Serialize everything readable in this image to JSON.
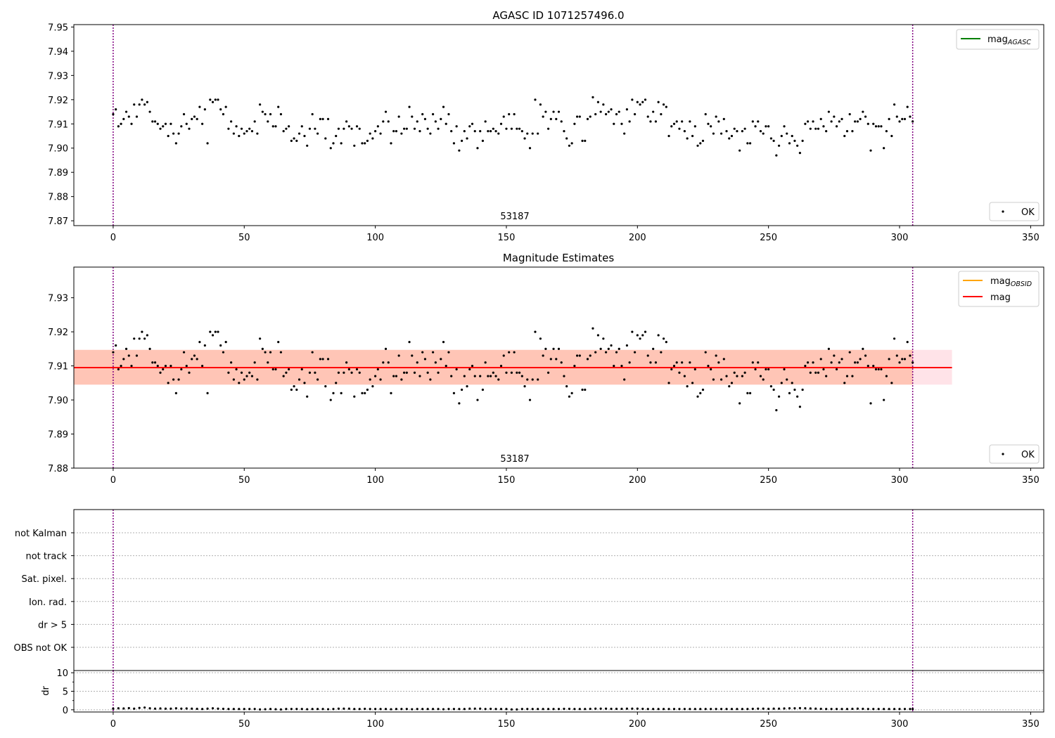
{
  "colors": {
    "mag_agasc": "#008000",
    "mag_obsid": "#ffa500",
    "mag": "#ff0000",
    "vline": "#800080",
    "points": "#000000",
    "band_outer": "#ffc0cb",
    "band_inner": "#ffa07a"
  },
  "chart_data": [
    {
      "type": "scatter",
      "title": "AGASC ID 1071257496.0",
      "xlabel": "",
      "ylabel": "",
      "xlim": [
        -15,
        355
      ],
      "ylim": [
        7.868,
        7.951
      ],
      "xticks": [
        0,
        50,
        100,
        150,
        200,
        250,
        300,
        350
      ],
      "yticks": [
        7.87,
        7.88,
        7.89,
        7.9,
        7.91,
        7.92,
        7.93,
        7.94,
        7.95
      ],
      "annotation": "53187",
      "vlines": [
        0,
        305
      ],
      "legend_lines": [
        {
          "label": "mag",
          "sub": "AGASC",
          "color": "#008000"
        }
      ],
      "legend_lines_position": "upper-right",
      "legend_points": [
        {
          "label": "OK"
        }
      ],
      "legend_points_position": "lower-right",
      "grid": false,
      "series": [
        {
          "name": "OK",
          "source": "mag_points"
        }
      ]
    },
    {
      "type": "scatter",
      "title": "Magnitude Estimates",
      "xlabel": "",
      "ylabel": "",
      "xlim": [
        -15,
        355
      ],
      "ylim": [
        7.88,
        7.939
      ],
      "xticks": [
        0,
        50,
        100,
        150,
        200,
        250,
        300,
        350
      ],
      "yticks": [
        7.88,
        7.89,
        7.9,
        7.91,
        7.92,
        7.93
      ],
      "annotation": "53187",
      "vlines": [
        0,
        305
      ],
      "mag_value": 7.9095,
      "mag_line_x": [
        -15,
        320
      ],
      "band_outer": {
        "x": [
          -15,
          320
        ],
        "y": [
          7.9045,
          7.9147
        ]
      },
      "band_inner": {
        "x": [
          -15,
          305
        ],
        "y": [
          7.9045,
          7.9147
        ]
      },
      "legend_lines": [
        {
          "label": "mag",
          "sub": "OBSID",
          "color": "#ffa500"
        },
        {
          "label": "mag",
          "sub": "",
          "color": "#ff0000"
        }
      ],
      "legend_lines_position": "upper-right",
      "legend_points": [
        {
          "label": "OK"
        }
      ],
      "legend_points_position": "lower-right",
      "grid": false,
      "series": [
        {
          "name": "OK",
          "source": "mag_points"
        }
      ]
    },
    {
      "type": "scatter",
      "title": "",
      "xlim": [
        -15,
        355
      ],
      "category_labels": [
        "not Kalman",
        "not track",
        "Sat. pixel.",
        "Ion. rad.",
        "dr > 5",
        "OBS not OK"
      ],
      "vlines": [
        0,
        305
      ],
      "grid": true
    },
    {
      "type": "scatter",
      "title": "",
      "xlabel": "",
      "ylabel": "dr",
      "xlim": [
        -15,
        355
      ],
      "ylim": [
        -0.6,
        10.6
      ],
      "xticks": [
        0,
        50,
        100,
        150,
        200,
        250,
        300,
        350
      ],
      "yticks": [
        0,
        5,
        10
      ],
      "vlines": [
        0,
        305
      ],
      "grid": true,
      "series": [
        {
          "name": "dr",
          "source": "dr_points"
        }
      ]
    }
  ],
  "mag_points": [
    [
      0,
      7.914
    ],
    [
      1,
      7.916
    ],
    [
      2,
      7.909
    ],
    [
      3,
      7.91
    ],
    [
      4,
      7.912
    ],
    [
      5,
      7.915
    ],
    [
      6,
      7.913
    ],
    [
      7,
      7.91
    ],
    [
      8,
      7.918
    ],
    [
      9,
      7.913
    ],
    [
      10,
      7.918
    ],
    [
      11,
      7.92
    ],
    [
      12,
      7.918
    ],
    [
      13,
      7.919
    ],
    [
      14,
      7.915
    ],
    [
      15,
      7.911
    ],
    [
      16,
      7.911
    ],
    [
      17,
      7.91
    ],
    [
      18,
      7.908
    ],
    [
      19,
      7.909
    ],
    [
      20,
      7.91
    ],
    [
      21,
      7.905
    ],
    [
      22,
      7.91
    ],
    [
      23,
      7.906
    ],
    [
      24,
      7.902
    ],
    [
      25,
      7.906
    ],
    [
      26,
      7.909
    ],
    [
      27,
      7.914
    ],
    [
      28,
      7.91
    ],
    [
      29,
      7.908
    ],
    [
      30,
      7.912
    ],
    [
      31,
      7.913
    ],
    [
      32,
      7.912
    ],
    [
      33,
      7.917
    ],
    [
      34,
      7.91
    ],
    [
      35,
      7.916
    ],
    [
      36,
      7.902
    ],
    [
      37,
      7.92
    ],
    [
      38,
      7.919
    ],
    [
      39,
      7.92
    ],
    [
      40,
      7.92
    ],
    [
      41,
      7.916
    ],
    [
      42,
      7.914
    ],
    [
      43,
      7.917
    ],
    [
      44,
      7.908
    ],
    [
      45,
      7.911
    ],
    [
      46,
      7.906
    ],
    [
      47,
      7.909
    ],
    [
      48,
      7.905
    ],
    [
      49,
      7.908
    ],
    [
      50,
      7.906
    ],
    [
      51,
      7.907
    ],
    [
      52,
      7.908
    ],
    [
      53,
      7.907
    ],
    [
      54,
      7.911
    ],
    [
      55,
      7.906
    ],
    [
      56,
      7.918
    ],
    [
      57,
      7.915
    ],
    [
      58,
      7.914
    ],
    [
      59,
      7.911
    ],
    [
      60,
      7.914
    ],
    [
      61,
      7.909
    ],
    [
      62,
      7.909
    ],
    [
      63,
      7.917
    ],
    [
      64,
      7.914
    ],
    [
      65,
      7.907
    ],
    [
      66,
      7.908
    ],
    [
      67,
      7.909
    ],
    [
      68,
      7.903
    ],
    [
      69,
      7.904
    ],
    [
      70,
      7.903
    ],
    [
      71,
      7.906
    ],
    [
      72,
      7.909
    ],
    [
      73,
      7.905
    ],
    [
      74,
      7.901
    ],
    [
      75,
      7.908
    ],
    [
      76,
      7.914
    ],
    [
      77,
      7.908
    ],
    [
      78,
      7.906
    ],
    [
      79,
      7.912
    ],
    [
      80,
      7.912
    ],
    [
      81,
      7.904
    ],
    [
      82,
      7.912
    ],
    [
      83,
      7.9
    ],
    [
      84,
      7.902
    ],
    [
      85,
      7.905
    ],
    [
      86,
      7.908
    ],
    [
      87,
      7.902
    ],
    [
      88,
      7.908
    ],
    [
      89,
      7.911
    ],
    [
      90,
      7.909
    ],
    [
      91,
      7.908
    ],
    [
      92,
      7.901
    ],
    [
      93,
      7.909
    ],
    [
      94,
      7.908
    ],
    [
      95,
      7.902
    ],
    [
      96,
      7.902
    ],
    [
      97,
      7.903
    ],
    [
      98,
      7.906
    ],
    [
      99,
      7.904
    ],
    [
      100,
      7.907
    ],
    [
      101,
      7.909
    ],
    [
      102,
      7.906
    ],
    [
      103,
      7.911
    ],
    [
      104,
      7.915
    ],
    [
      105,
      7.911
    ],
    [
      106,
      7.902
    ],
    [
      107,
      7.907
    ],
    [
      108,
      7.907
    ],
    [
      109,
      7.913
    ],
    [
      110,
      7.906
    ],
    [
      111,
      7.908
    ],
    [
      112,
      7.908
    ],
    [
      113,
      7.917
    ],
    [
      114,
      7.913
    ],
    [
      115,
      7.908
    ],
    [
      116,
      7.911
    ],
    [
      117,
      7.907
    ],
    [
      118,
      7.914
    ],
    [
      119,
      7.912
    ],
    [
      120,
      7.908
    ],
    [
      121,
      7.906
    ],
    [
      122,
      7.914
    ],
    [
      123,
      7.911
    ],
    [
      124,
      7.908
    ],
    [
      125,
      7.912
    ],
    [
      126,
      7.917
    ],
    [
      127,
      7.91
    ],
    [
      128,
      7.914
    ],
    [
      129,
      7.907
    ],
    [
      130,
      7.902
    ],
    [
      131,
      7.909
    ],
    [
      132,
      7.899
    ],
    [
      133,
      7.903
    ],
    [
      134,
      7.907
    ],
    [
      135,
      7.904
    ],
    [
      136,
      7.909
    ],
    [
      137,
      7.91
    ],
    [
      138,
      7.907
    ],
    [
      139,
      7.9
    ],
    [
      140,
      7.907
    ],
    [
      141,
      7.903
    ],
    [
      142,
      7.911
    ],
    [
      143,
      7.907
    ],
    [
      144,
      7.907
    ],
    [
      145,
      7.908
    ],
    [
      146,
      7.907
    ],
    [
      147,
      7.906
    ],
    [
      148,
      7.91
    ],
    [
      149,
      7.913
    ],
    [
      150,
      7.908
    ],
    [
      151,
      7.914
    ],
    [
      152,
      7.908
    ],
    [
      153,
      7.914
    ],
    [
      154,
      7.908
    ],
    [
      155,
      7.908
    ],
    [
      156,
      7.907
    ],
    [
      157,
      7.904
    ],
    [
      158,
      7.906
    ],
    [
      159,
      7.9
    ],
    [
      160,
      7.906
    ],
    [
      161,
      7.92
    ],
    [
      162,
      7.906
    ],
    [
      163,
      7.918
    ],
    [
      164,
      7.913
    ],
    [
      165,
      7.915
    ],
    [
      166,
      7.908
    ],
    [
      167,
      7.912
    ],
    [
      168,
      7.915
    ],
    [
      169,
      7.912
    ],
    [
      170,
      7.915
    ],
    [
      171,
      7.911
    ],
    [
      172,
      7.907
    ],
    [
      173,
      7.904
    ],
    [
      174,
      7.901
    ],
    [
      175,
      7.902
    ],
    [
      176,
      7.91
    ],
    [
      177,
      7.913
    ],
    [
      178,
      7.913
    ],
    [
      179,
      7.903
    ],
    [
      180,
      7.903
    ],
    [
      181,
      7.912
    ],
    [
      182,
      7.913
    ],
    [
      183,
      7.921
    ],
    [
      184,
      7.914
    ],
    [
      185,
      7.919
    ],
    [
      186,
      7.915
    ],
    [
      187,
      7.918
    ],
    [
      188,
      7.914
    ],
    [
      189,
      7.915
    ],
    [
      190,
      7.916
    ],
    [
      191,
      7.91
    ],
    [
      192,
      7.914
    ],
    [
      193,
      7.915
    ],
    [
      194,
      7.91
    ],
    [
      195,
      7.906
    ],
    [
      196,
      7.916
    ],
    [
      197,
      7.911
    ],
    [
      198,
      7.92
    ],
    [
      199,
      7.914
    ],
    [
      200,
      7.919
    ],
    [
      201,
      7.918
    ],
    [
      202,
      7.919
    ],
    [
      203,
      7.92
    ],
    [
      204,
      7.913
    ],
    [
      205,
      7.911
    ],
    [
      206,
      7.915
    ],
    [
      207,
      7.911
    ],
    [
      208,
      7.919
    ],
    [
      209,
      7.914
    ],
    [
      210,
      7.918
    ],
    [
      211,
      7.917
    ],
    [
      212,
      7.905
    ],
    [
      213,
      7.909
    ],
    [
      214,
      7.91
    ],
    [
      215,
      7.911
    ],
    [
      216,
      7.908
    ],
    [
      217,
      7.911
    ],
    [
      218,
      7.907
    ],
    [
      219,
      7.904
    ],
    [
      220,
      7.911
    ],
    [
      221,
      7.905
    ],
    [
      222,
      7.909
    ],
    [
      223,
      7.901
    ],
    [
      224,
      7.902
    ],
    [
      225,
      7.903
    ],
    [
      226,
      7.914
    ],
    [
      227,
      7.91
    ],
    [
      228,
      7.909
    ],
    [
      229,
      7.906
    ],
    [
      230,
      7.913
    ],
    [
      231,
      7.911
    ],
    [
      232,
      7.906
    ],
    [
      233,
      7.912
    ],
    [
      234,
      7.907
    ],
    [
      235,
      7.904
    ],
    [
      236,
      7.905
    ],
    [
      237,
      7.908
    ],
    [
      238,
      7.907
    ],
    [
      239,
      7.899
    ],
    [
      240,
      7.907
    ],
    [
      241,
      7.908
    ],
    [
      242,
      7.902
    ],
    [
      243,
      7.902
    ],
    [
      244,
      7.911
    ],
    [
      245,
      7.909
    ],
    [
      246,
      7.911
    ],
    [
      247,
      7.907
    ],
    [
      248,
      7.906
    ],
    [
      249,
      7.909
    ],
    [
      250,
      7.909
    ],
    [
      251,
      7.904
    ],
    [
      252,
      7.903
    ],
    [
      253,
      7.897
    ],
    [
      254,
      7.901
    ],
    [
      255,
      7.905
    ],
    [
      256,
      7.909
    ],
    [
      257,
      7.906
    ],
    [
      258,
      7.902
    ],
    [
      259,
      7.905
    ],
    [
      260,
      7.903
    ],
    [
      261,
      7.901
    ],
    [
      262,
      7.898
    ],
    [
      263,
      7.903
    ],
    [
      264,
      7.91
    ],
    [
      265,
      7.911
    ],
    [
      266,
      7.908
    ],
    [
      267,
      7.911
    ],
    [
      268,
      7.908
    ],
    [
      269,
      7.908
    ],
    [
      270,
      7.912
    ],
    [
      271,
      7.909
    ],
    [
      272,
      7.907
    ],
    [
      273,
      7.915
    ],
    [
      274,
      7.911
    ],
    [
      275,
      7.913
    ],
    [
      276,
      7.909
    ],
    [
      277,
      7.911
    ],
    [
      278,
      7.912
    ],
    [
      279,
      7.905
    ],
    [
      280,
      7.907
    ],
    [
      281,
      7.914
    ],
    [
      282,
      7.907
    ],
    [
      283,
      7.911
    ],
    [
      284,
      7.911
    ],
    [
      285,
      7.912
    ],
    [
      286,
      7.915
    ],
    [
      287,
      7.913
    ],
    [
      288,
      7.91
    ],
    [
      289,
      7.899
    ],
    [
      290,
      7.91
    ],
    [
      291,
      7.909
    ],
    [
      292,
      7.909
    ],
    [
      293,
      7.909
    ],
    [
      294,
      7.9
    ],
    [
      295,
      7.907
    ],
    [
      296,
      7.912
    ],
    [
      297,
      7.905
    ],
    [
      298,
      7.918
    ],
    [
      299,
      7.913
    ],
    [
      300,
      7.911
    ],
    [
      301,
      7.912
    ],
    [
      302,
      7.912
    ],
    [
      303,
      7.917
    ],
    [
      304,
      7.913
    ],
    [
      305,
      7.911
    ]
  ],
  "dr_points": [
    [
      0,
      0.3
    ],
    [
      2,
      0.4
    ],
    [
      4,
      0.35
    ],
    [
      6,
      0.45
    ],
    [
      8,
      0.3
    ],
    [
      10,
      0.5
    ],
    [
      12,
      0.6
    ],
    [
      14,
      0.4
    ],
    [
      16,
      0.3
    ],
    [
      18,
      0.35
    ],
    [
      20,
      0.3
    ],
    [
      22,
      0.3
    ],
    [
      24,
      0.4
    ],
    [
      26,
      0.3
    ],
    [
      28,
      0.35
    ],
    [
      30,
      0.3
    ],
    [
      32,
      0.25
    ],
    [
      34,
      0.2
    ],
    [
      36,
      0.3
    ],
    [
      38,
      0.4
    ],
    [
      40,
      0.3
    ],
    [
      42,
      0.25
    ],
    [
      44,
      0.2
    ],
    [
      46,
      0.2
    ],
    [
      48,
      0.2
    ],
    [
      50,
      0.2
    ],
    [
      52,
      0.2
    ],
    [
      54,
      0.2
    ],
    [
      56,
      0.1
    ],
    [
      58,
      0.15
    ],
    [
      60,
      0.2
    ],
    [
      62,
      0.15
    ],
    [
      64,
      0.1
    ],
    [
      66,
      0.2
    ],
    [
      68,
      0.2
    ],
    [
      70,
      0.2
    ],
    [
      72,
      0.2
    ],
    [
      74,
      0.15
    ],
    [
      76,
      0.2
    ],
    [
      78,
      0.2
    ],
    [
      80,
      0.2
    ],
    [
      82,
      0.15
    ],
    [
      84,
      0.2
    ],
    [
      86,
      0.3
    ],
    [
      88,
      0.3
    ],
    [
      90,
      0.3
    ],
    [
      92,
      0.2
    ],
    [
      94,
      0.2
    ],
    [
      96,
      0.25
    ],
    [
      98,
      0.2
    ],
    [
      100,
      0.2
    ],
    [
      102,
      0.2
    ],
    [
      104,
      0.2
    ],
    [
      106,
      0.15
    ],
    [
      108,
      0.2
    ],
    [
      110,
      0.2
    ],
    [
      112,
      0.2
    ],
    [
      114,
      0.15
    ],
    [
      116,
      0.2
    ],
    [
      118,
      0.2
    ],
    [
      120,
      0.2
    ],
    [
      122,
      0.2
    ],
    [
      124,
      0.2
    ],
    [
      126,
      0.15
    ],
    [
      128,
      0.2
    ],
    [
      130,
      0.2
    ],
    [
      132,
      0.2
    ],
    [
      134,
      0.2
    ],
    [
      136,
      0.3
    ],
    [
      138,
      0.3
    ],
    [
      140,
      0.3
    ],
    [
      142,
      0.2
    ],
    [
      144,
      0.25
    ],
    [
      146,
      0.2
    ],
    [
      148,
      0.2
    ],
    [
      150,
      0.2
    ],
    [
      152,
      0.1
    ],
    [
      154,
      0.1
    ],
    [
      156,
      0.2
    ],
    [
      158,
      0.2
    ],
    [
      160,
      0.2
    ],
    [
      162,
      0.2
    ],
    [
      164,
      0.2
    ],
    [
      166,
      0.2
    ],
    [
      168,
      0.2
    ],
    [
      170,
      0.2
    ],
    [
      172,
      0.25
    ],
    [
      174,
      0.25
    ],
    [
      176,
      0.2
    ],
    [
      178,
      0.2
    ],
    [
      180,
      0.2
    ],
    [
      182,
      0.25
    ],
    [
      184,
      0.3
    ],
    [
      186,
      0.3
    ],
    [
      188,
      0.3
    ],
    [
      190,
      0.25
    ],
    [
      192,
      0.25
    ],
    [
      194,
      0.25
    ],
    [
      196,
      0.3
    ],
    [
      198,
      0.3
    ],
    [
      200,
      0.3
    ],
    [
      202,
      0.25
    ],
    [
      204,
      0.2
    ],
    [
      206,
      0.2
    ],
    [
      208,
      0.2
    ],
    [
      210,
      0.2
    ],
    [
      212,
      0.2
    ],
    [
      214,
      0.2
    ],
    [
      216,
      0.2
    ],
    [
      218,
      0.2
    ],
    [
      220,
      0.2
    ],
    [
      222,
      0.2
    ],
    [
      224,
      0.2
    ],
    [
      226,
      0.2
    ],
    [
      228,
      0.2
    ],
    [
      230,
      0.2
    ],
    [
      232,
      0.2
    ],
    [
      234,
      0.2
    ],
    [
      236,
      0.2
    ],
    [
      238,
      0.2
    ],
    [
      240,
      0.2
    ],
    [
      242,
      0.2
    ],
    [
      244,
      0.25
    ],
    [
      246,
      0.3
    ],
    [
      248,
      0.3
    ],
    [
      250,
      0.25
    ],
    [
      252,
      0.3
    ],
    [
      254,
      0.3
    ],
    [
      256,
      0.35
    ],
    [
      258,
      0.4
    ],
    [
      260,
      0.4
    ],
    [
      262,
      0.45
    ],
    [
      264,
      0.4
    ],
    [
      266,
      0.35
    ],
    [
      268,
      0.3
    ],
    [
      270,
      0.25
    ],
    [
      272,
      0.2
    ],
    [
      274,
      0.2
    ],
    [
      276,
      0.2
    ],
    [
      278,
      0.2
    ],
    [
      280,
      0.2
    ],
    [
      282,
      0.25
    ],
    [
      284,
      0.3
    ],
    [
      286,
      0.25
    ],
    [
      288,
      0.2
    ],
    [
      290,
      0.2
    ],
    [
      292,
      0.2
    ],
    [
      294,
      0.2
    ],
    [
      296,
      0.2
    ],
    [
      298,
      0.2
    ],
    [
      300,
      0.2
    ],
    [
      302,
      0.2
    ],
    [
      304,
      0.2
    ],
    [
      305,
      0.2
    ]
  ]
}
